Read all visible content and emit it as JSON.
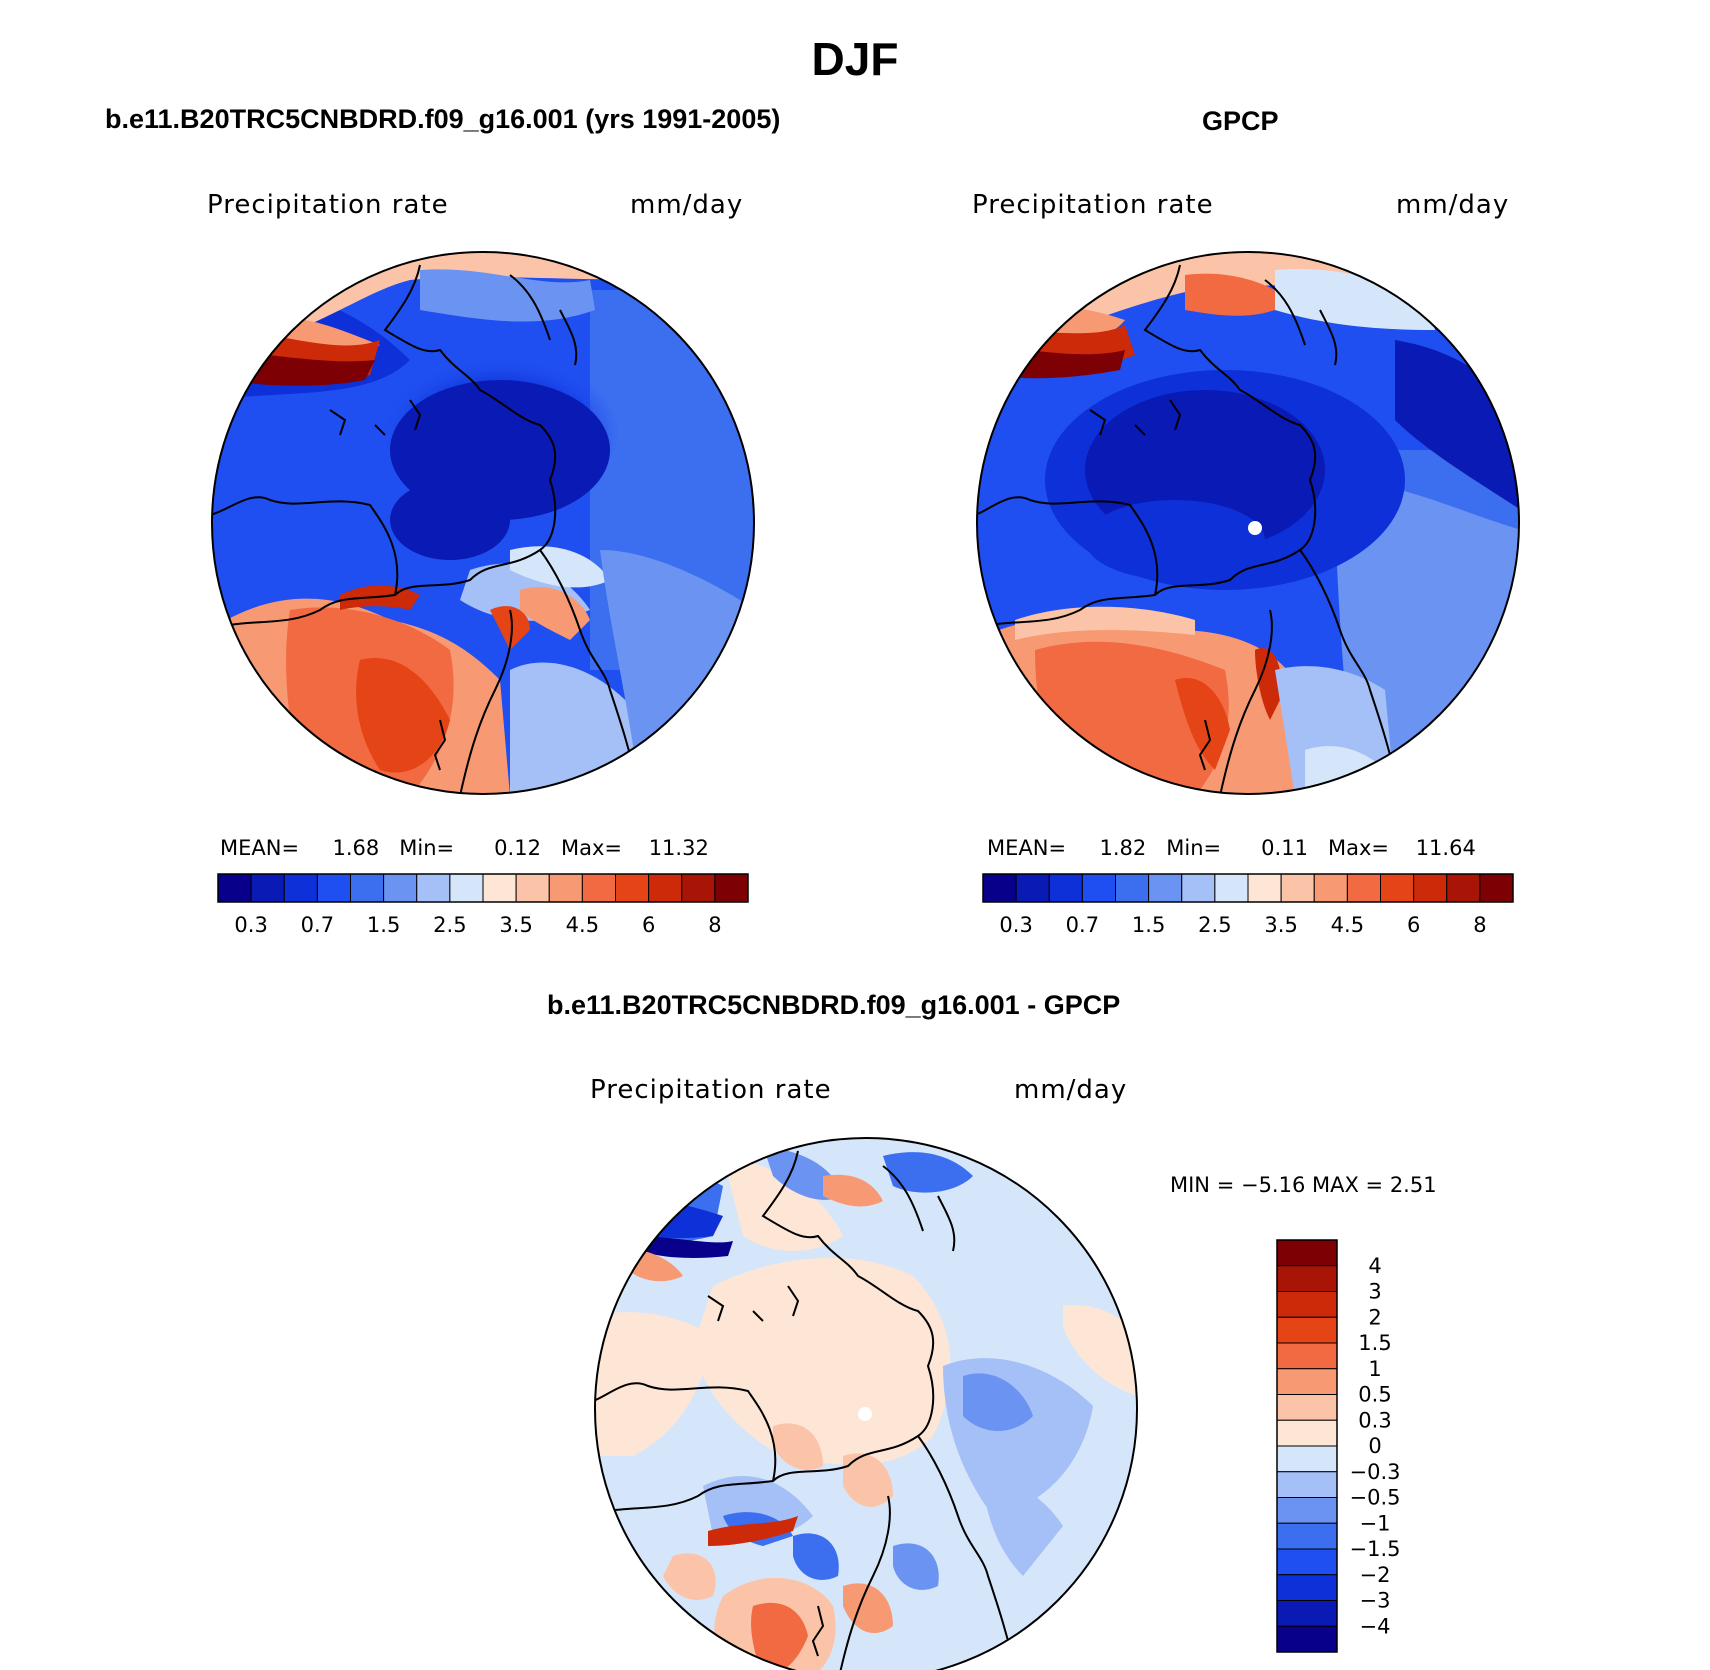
{
  "figure": {
    "title": "DJF"
  },
  "panels": {
    "model": {
      "title": "b.e11.B20TRC5CNBDRD.f09_g16.001 (yrs 1991-2005)",
      "var_label": "Precipitation rate",
      "units": "mm/day",
      "stats": {
        "mean_label": "MEAN=",
        "mean": "1.68",
        "min_label": "Min=",
        "min": "0.12",
        "max_label": "Max=",
        "max": "11.32"
      }
    },
    "obs": {
      "title": "GPCP",
      "var_label": "Precipitation rate",
      "units": "mm/day",
      "stats": {
        "mean_label": "MEAN=",
        "mean": "1.82",
        "min_label": "Min=",
        "min": "0.11",
        "max_label": "Max=",
        "max": "11.64"
      }
    },
    "diff": {
      "title": "b.e11.B20TRC5CNBDRD.f09_g16.001 - GPCP",
      "var_label": "Precipitation rate",
      "units": "mm/day",
      "stats_text": "MIN =   −5.16  MAX =    2.51"
    }
  },
  "colorbars": {
    "precip": {
      "colors": [
        "#08008a",
        "#0a1ab4",
        "#0e30d8",
        "#1f4ff0",
        "#3c6ef0",
        "#6b94f2",
        "#a4c0f6",
        "#d6e6fa",
        "#fde6d6",
        "#fbc4a8",
        "#f79a74",
        "#f26a42",
        "#e44416",
        "#cc2a08",
        "#a81406",
        "#7d0004"
      ],
      "tick_labels": [
        "0.3",
        "0.7",
        "1.5",
        "2.5",
        "3.5",
        "4.5",
        "6",
        "8"
      ]
    },
    "diff": {
      "colors": [
        "#08008a",
        "#0a1ab4",
        "#0e30d8",
        "#1f4ff0",
        "#3c6ef0",
        "#6b94f2",
        "#a4c0f6",
        "#d6e6fa",
        "#fde6d6",
        "#fbc4a8",
        "#f79a74",
        "#f26a42",
        "#e44416",
        "#cc2a08",
        "#a81406",
        "#7d0004"
      ],
      "tick_labels": [
        "4",
        "3",
        "2",
        "1.5",
        "1",
        "0.5",
        "0.3",
        "0",
        "−0.3",
        "−0.5",
        "−1",
        "−1.5",
        "−2",
        "−3",
        "−4"
      ]
    }
  }
}
